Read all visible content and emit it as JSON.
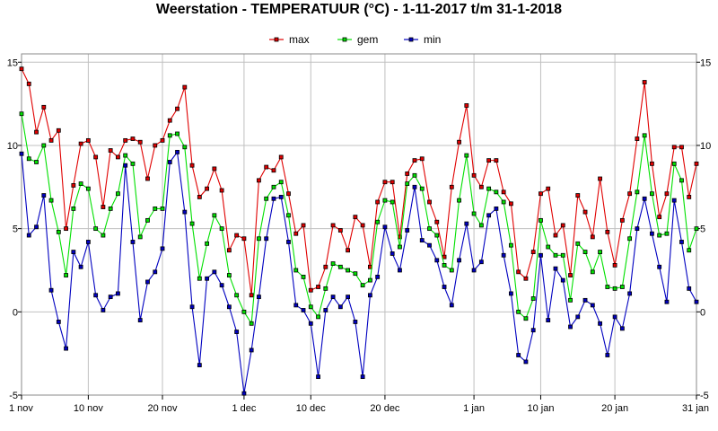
{
  "chart_data": {
    "type": "line",
    "title": "Weerstation  -  TEMPERATUUR (°C)  -  1-11-2017 t/m 31-1-2018",
    "xlabel": "",
    "ylabel": "",
    "ylim": [
      -5,
      15.5
    ],
    "yticks": [
      -5,
      0,
      5,
      10,
      15
    ],
    "ytick_labels": [
      "-5",
      "0",
      "5",
      "10",
      "15"
    ],
    "x_day_range": [
      0,
      91
    ],
    "xticks": [
      {
        "day": 0,
        "label": "1 nov"
      },
      {
        "day": 9,
        "label": "10 nov"
      },
      {
        "day": 19,
        "label": "20 nov"
      },
      {
        "day": 30,
        "label": "1 dec"
      },
      {
        "day": 39,
        "label": "10 dec"
      },
      {
        "day": 49,
        "label": "20 dec"
      },
      {
        "day": 61,
        "label": "1 jan"
      },
      {
        "day": 70,
        "label": "10 jan"
      },
      {
        "day": 80,
        "label": "20 jan"
      },
      {
        "day": 91,
        "label": "31 jan"
      }
    ],
    "grid": true,
    "legend_position": "top-center",
    "series": [
      {
        "name": "max",
        "color": "#e00000",
        "values": [
          14.6,
          13.7,
          10.8,
          12.3,
          10.3,
          10.9,
          5.0,
          7.6,
          10.1,
          10.3,
          9.3,
          6.3,
          9.7,
          9.3,
          10.3,
          10.4,
          10.2,
          8.0,
          10.0,
          10.3,
          11.5,
          12.2,
          13.5,
          8.8,
          6.9,
          7.4,
          8.6,
          7.3,
          3.7,
          4.6,
          4.4,
          1.0,
          7.9,
          8.7,
          8.5,
          9.3,
          7.1,
          4.7,
          5.2,
          1.3,
          1.5,
          2.7,
          5.2,
          4.9,
          3.7,
          5.7,
          5.2,
          2.7,
          6.6,
          7.8,
          7.8,
          4.5,
          8.3,
          9.1,
          9.2,
          6.6,
          5.4,
          3.3,
          7.5,
          10.2,
          12.4,
          8.2,
          7.5,
          9.1,
          9.1,
          7.2,
          6.5,
          2.4,
          2.0,
          3.6,
          7.1,
          7.4,
          4.6,
          5.2,
          2.2,
          7.0,
          6.0,
          4.5,
          8.0,
          4.8,
          2.8,
          5.5,
          7.1,
          10.4,
          13.8,
          8.9,
          5.7,
          7.1,
          9.9,
          9.9,
          6.9,
          8.9
        ]
      },
      {
        "name": "gem",
        "color": "#00e000",
        "values": [
          11.9,
          9.2,
          9.0,
          10.0,
          6.7,
          4.8,
          2.2,
          6.2,
          7.7,
          7.4,
          5.0,
          4.6,
          6.2,
          7.1,
          9.4,
          8.9,
          4.5,
          5.5,
          6.2,
          6.2,
          10.6,
          10.7,
          9.9,
          5.3,
          2.0,
          4.1,
          5.8,
          5.0,
          2.2,
          1.0,
          0.0,
          -0.7,
          4.4,
          6.8,
          7.5,
          7.8,
          5.8,
          2.5,
          2.1,
          0.3,
          -0.3,
          1.4,
          2.9,
          2.7,
          2.5,
          2.3,
          1.6,
          1.9,
          5.4,
          6.7,
          6.6,
          3.9,
          7.7,
          8.2,
          7.4,
          5.0,
          4.6,
          2.8,
          2.5,
          6.7,
          9.4,
          5.9,
          5.2,
          7.4,
          7.2,
          6.6,
          4.0,
          0.0,
          -0.4,
          0.8,
          5.5,
          3.9,
          3.4,
          3.4,
          0.7,
          4.1,
          3.6,
          2.4,
          3.6,
          1.5,
          1.4,
          1.5,
          4.4,
          7.2,
          10.6,
          7.1,
          4.6,
          4.7,
          8.9,
          7.9,
          3.7,
          5.0
        ]
      },
      {
        "name": "min",
        "color": "#0000c0",
        "values": [
          9.5,
          4.6,
          5.1,
          7.0,
          1.3,
          -0.6,
          -2.2,
          3.6,
          2.7,
          4.2,
          1.0,
          0.1,
          0.9,
          1.1,
          8.8,
          4.2,
          -0.5,
          1.8,
          2.4,
          3.8,
          9.0,
          9.6,
          6.0,
          0.3,
          -3.2,
          2.0,
          2.4,
          1.6,
          0.3,
          -1.2,
          -4.9,
          -2.3,
          0.9,
          4.4,
          6.8,
          6.9,
          4.2,
          0.4,
          0.1,
          -0.7,
          -3.9,
          0.1,
          0.9,
          0.3,
          0.9,
          -0.6,
          -3.9,
          1.0,
          2.1,
          5.1,
          3.5,
          2.5,
          4.9,
          7.5,
          4.3,
          4.0,
          3.1,
          1.5,
          0.4,
          3.1,
          5.3,
          2.5,
          3.0,
          5.8,
          6.2,
          3.4,
          1.1,
          -2.6,
          -3.0,
          -1.1,
          3.4,
          -0.5,
          2.6,
          1.9,
          -0.9,
          -0.3,
          0.7,
          0.4,
          -0.7,
          -2.6,
          -0.3,
          -1.0,
          1.1,
          5.0,
          6.8,
          4.7,
          2.7,
          0.6,
          6.7,
          4.2,
          1.4,
          0.6
        ]
      }
    ]
  }
}
